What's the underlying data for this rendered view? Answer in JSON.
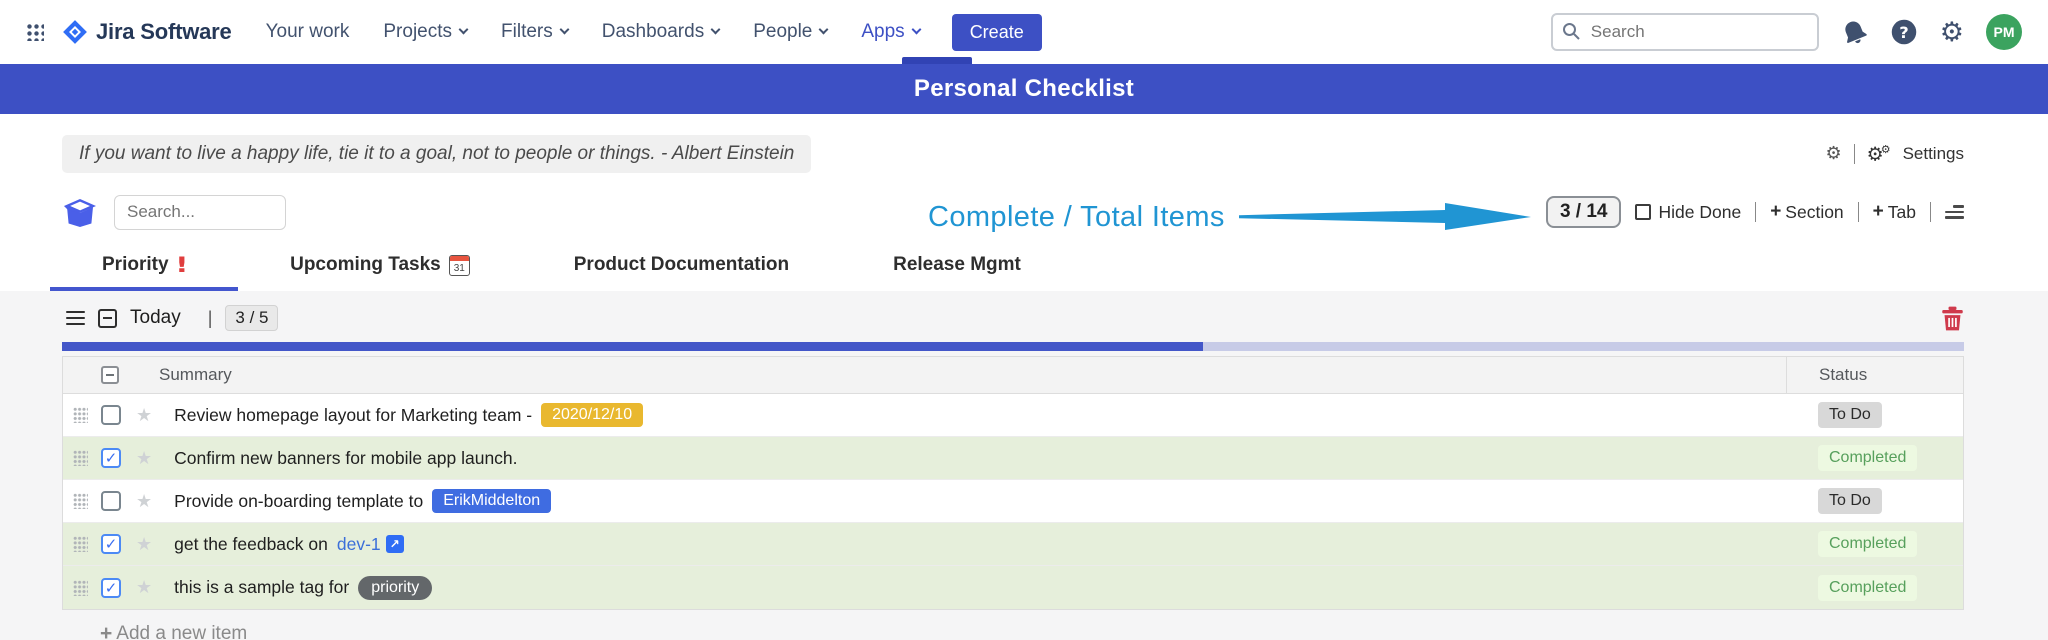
{
  "nav": {
    "app_name": "Jira Software",
    "items": [
      {
        "label": "Your work",
        "dropdown": false,
        "active": false
      },
      {
        "label": "Projects",
        "dropdown": true,
        "active": false
      },
      {
        "label": "Filters",
        "dropdown": true,
        "active": false
      },
      {
        "label": "Dashboards",
        "dropdown": true,
        "active": false
      },
      {
        "label": "People",
        "dropdown": true,
        "active": false
      },
      {
        "label": "Apps",
        "dropdown": true,
        "active": true
      }
    ],
    "create_label": "Create",
    "search_placeholder": "Search",
    "avatar_initials": "PM"
  },
  "banner": {
    "title": "Personal Checklist"
  },
  "quote": {
    "text": "If you want to live a happy life, tie it to a goal, not to people or things. - Albert Einstein"
  },
  "settings": {
    "label": "Settings"
  },
  "toolbar": {
    "search_placeholder": "Search...",
    "annotation_label": "Complete / Total Items",
    "counter": "3 / 14",
    "hide_done_label": "Hide Done",
    "section_label": "Section",
    "tab_label": "Tab"
  },
  "tabs": [
    {
      "label": "Priority",
      "icon": "exclamation",
      "active": true
    },
    {
      "label": "Upcoming Tasks",
      "icon": "calendar",
      "icon_number": "31",
      "active": false
    },
    {
      "label": "Product Documentation",
      "icon": null,
      "active": false
    },
    {
      "label": "Release Mgmt",
      "icon": null,
      "active": false
    }
  ],
  "section": {
    "title": "Today",
    "counter": "3 / 5",
    "progress_percent": 60
  },
  "table": {
    "headers": {
      "summary": "Summary",
      "status": "Status"
    },
    "rows": [
      {
        "checked": false,
        "done": false,
        "summary": "Review homepage layout for Marketing team -",
        "chip": {
          "type": "date",
          "label": "2020/12/10"
        },
        "status": "To Do"
      },
      {
        "checked": true,
        "done": true,
        "summary": "Confirm new banners for mobile app launch.",
        "chip": null,
        "status": "Completed"
      },
      {
        "checked": false,
        "done": false,
        "summary": "Provide on-boarding template to",
        "chip": {
          "type": "user",
          "label": "ErikMiddelton"
        },
        "status": "To Do"
      },
      {
        "checked": true,
        "done": true,
        "summary": "get the feedback on",
        "chip": {
          "type": "link",
          "label": "dev-1"
        },
        "status": "Completed"
      },
      {
        "checked": true,
        "done": true,
        "summary": "this is a sample tag for",
        "chip": {
          "type": "tag",
          "label": "priority"
        },
        "status": "Completed"
      }
    ]
  },
  "footer": {
    "add_item_label": "Add a new item"
  },
  "colors": {
    "banner_blue": "#3d50c4",
    "annotation_cyan": "#2095d3",
    "progress_fill": "#4356c8",
    "progress_track": "#c7cbe7",
    "row_done_bg": "#e6efdb",
    "badge_date": "#e9b82f",
    "badge_user": "#3f6ce1",
    "badge_tag": "#63676a",
    "status_todo_bg": "#d8d8d8",
    "status_done_text": "#57a05c",
    "trash_red": "#cf3a4c",
    "avatar_green": "#3ba35f"
  }
}
